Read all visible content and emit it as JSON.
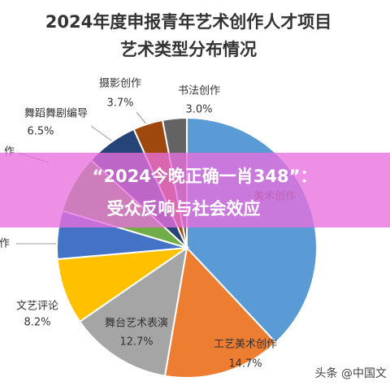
{
  "chart_data": {
    "type": "pie",
    "title": [
      "2024年度申报青年艺术创作人才项目",
      "艺术类型分布情况"
    ],
    "categories": [
      "美术创作",
      "工艺美术创作",
      "舞台艺术表演",
      "文艺评论",
      "作",
      "作",
      "舞蹈舞剧编导",
      "摄影创作",
      "书法创作"
    ],
    "values": [
      38.0,
      14.7,
      12.7,
      8.2,
      6.0,
      7.2,
      6.5,
      3.7,
      3.0
    ],
    "value_labels": [
      null,
      "14.7%",
      "12.7%",
      "8.2%",
      null,
      null,
      "6.5%",
      "3.7%",
      "3.0%"
    ],
    "colors": [
      "#5b9bd5",
      "#ed7d31",
      "#a5a5a5",
      "#ffc000",
      "#4472c4",
      "#70ad47",
      "#264478",
      "#9e480e",
      "#636363"
    ],
    "banner": [
      "“2024今晚正确一肖348”：",
      "受众反响与社会效应"
    ],
    "watermark": "头条 @中国文"
  }
}
